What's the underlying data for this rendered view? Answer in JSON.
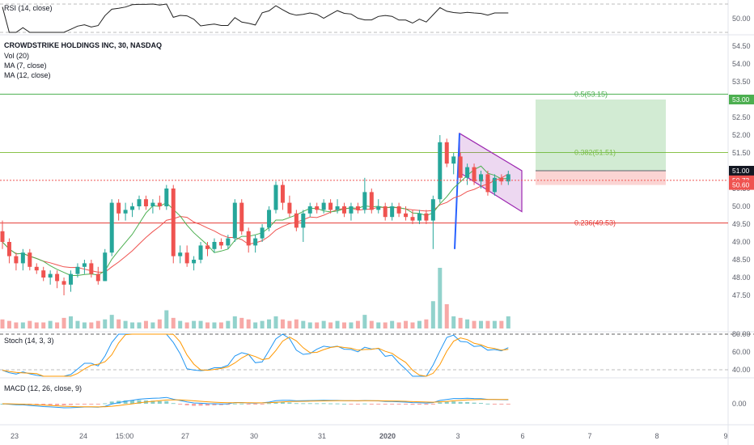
{
  "colors": {
    "up": "#26a69a",
    "down": "#ef5350",
    "rsi": "#212121",
    "ma7": "#4caf50",
    "ma12": "#ef5350",
    "stochK": "#2196f3",
    "stochD": "#ff9800",
    "macd": "#2196f3",
    "signal": "#ff9800",
    "fib05": "#4caf50",
    "fib0382": "#8bc34a",
    "fib0236": "#e53935",
    "flag": "#9c27b0",
    "pole": "#2962ff",
    "target": "#4caf50",
    "stop": "#ef5350"
  },
  "panes": {
    "rsi": {
      "label": "RSI (14, close)",
      "ticks": [
        "50.00"
      ]
    },
    "main": {
      "title": "CROWDSTRIKE HOLDINGS INC, 30, NASDAQ",
      "indicators": [
        "Vol (20)",
        "MA (7, close)",
        "MA (12, close)"
      ]
    },
    "stoch": {
      "label": "Stoch (14, 3, 3)",
      "ticks": [
        "80.00",
        "60.00",
        "40.00"
      ]
    },
    "macd": {
      "label": "MACD (12, 26, close, 9)",
      "ticks": [
        "0.00"
      ]
    }
  },
  "price_axis": {
    "ticks": [
      "54.50",
      "54.00",
      "53.50",
      "53.00",
      "52.50",
      "52.00",
      "51.50",
      "51.00",
      "50.50",
      "50.00",
      "49.50",
      "49.00",
      "48.50",
      "48.00",
      "47.50"
    ],
    "tags": [
      {
        "value": 53.0,
        "text": "53.00",
        "color": "#4caf50"
      },
      {
        "value": 51.0,
        "text": "51.00",
        "color": "#131722"
      },
      {
        "value": 50.73,
        "text": "50.73",
        "color": "#ef5350"
      },
      {
        "value": 50.6,
        "text": "50.60",
        "color": "#ef5350"
      }
    ]
  },
  "time_axis": [
    "23",
    "24",
    "15:00",
    "27",
    "30",
    "31",
    "2020",
    "3",
    "6",
    "7",
    "8",
    "9"
  ],
  "chart_data": {
    "type": "candlestick",
    "title": "CROWDSTRIKE HOLDINGS INC, 30, NASDAQ",
    "ylim": [
      47.5,
      54.75
    ],
    "candles": [
      [
        49.3,
        49.6,
        48.8,
        49.0
      ],
      [
        49.0,
        49.1,
        48.4,
        48.6
      ],
      [
        48.6,
        48.7,
        48.2,
        48.4
      ],
      [
        48.4,
        48.8,
        48.2,
        48.7
      ],
      [
        48.7,
        48.8,
        48.2,
        48.3
      ],
      [
        48.3,
        48.4,
        48.1,
        48.2
      ],
      [
        48.2,
        48.3,
        47.9,
        48.0
      ],
      [
        48.0,
        48.2,
        47.8,
        48.1
      ],
      [
        48.1,
        48.2,
        47.7,
        47.9
      ],
      [
        47.9,
        48.0,
        47.5,
        47.8
      ],
      [
        47.8,
        48.2,
        47.6,
        48.1
      ],
      [
        48.1,
        48.4,
        48.0,
        48.3
      ],
      [
        48.3,
        48.5,
        48.1,
        48.4
      ],
      [
        48.4,
        48.5,
        48.0,
        48.1
      ],
      [
        48.1,
        48.3,
        47.8,
        47.9
      ],
      [
        47.9,
        48.8,
        47.9,
        48.7
      ],
      [
        48.7,
        50.2,
        48.6,
        50.1
      ],
      [
        50.1,
        50.2,
        49.6,
        49.8
      ],
      [
        49.8,
        50.1,
        49.6,
        49.9
      ],
      [
        49.9,
        50.1,
        49.7,
        50.0
      ],
      [
        50.0,
        50.3,
        49.9,
        50.2
      ],
      [
        50.2,
        50.3,
        49.9,
        50.0
      ],
      [
        50.0,
        50.2,
        49.8,
        50.1
      ],
      [
        50.1,
        50.3,
        49.9,
        50.0
      ],
      [
        50.0,
        50.6,
        49.9,
        50.5
      ],
      [
        50.5,
        50.6,
        48.4,
        48.6
      ],
      [
        48.6,
        48.9,
        48.4,
        48.7
      ],
      [
        48.7,
        48.9,
        48.3,
        48.4
      ],
      [
        48.4,
        48.6,
        48.2,
        48.5
      ],
      [
        48.5,
        49.0,
        48.4,
        48.9
      ],
      [
        48.9,
        49.0,
        48.6,
        48.8
      ],
      [
        48.8,
        49.1,
        48.7,
        49.0
      ],
      [
        49.0,
        49.1,
        48.8,
        48.9
      ],
      [
        48.9,
        49.2,
        48.8,
        49.1
      ],
      [
        49.1,
        50.2,
        49.0,
        50.1
      ],
      [
        50.1,
        50.2,
        49.2,
        49.3
      ],
      [
        49.3,
        49.4,
        48.7,
        48.9
      ],
      [
        48.9,
        49.2,
        48.7,
        49.1
      ],
      [
        49.1,
        49.5,
        49.0,
        49.4
      ],
      [
        49.4,
        50.0,
        49.3,
        49.9
      ],
      [
        49.9,
        50.7,
        49.8,
        50.6
      ],
      [
        50.6,
        50.7,
        49.9,
        50.1
      ],
      [
        50.1,
        50.3,
        49.7,
        49.8
      ],
      [
        49.8,
        49.9,
        49.3,
        49.4
      ],
      [
        49.4,
        49.9,
        49.0,
        49.8
      ],
      [
        49.8,
        50.1,
        49.7,
        50.0
      ],
      [
        50.0,
        50.1,
        49.8,
        49.9
      ],
      [
        49.9,
        50.2,
        49.8,
        50.1
      ],
      [
        50.1,
        50.2,
        49.8,
        49.9
      ],
      [
        49.9,
        50.2,
        49.8,
        50.0
      ],
      [
        50.0,
        50.1,
        49.7,
        49.8
      ],
      [
        49.8,
        50.1,
        49.6,
        50.0
      ],
      [
        50.0,
        50.1,
        49.8,
        49.9
      ],
      [
        49.9,
        50.8,
        49.8,
        50.4
      ],
      [
        50.4,
        50.5,
        49.8,
        49.9
      ],
      [
        49.9,
        50.2,
        49.8,
        50.0
      ],
      [
        50.0,
        50.1,
        49.6,
        49.7
      ],
      [
        49.7,
        50.1,
        49.6,
        50.0
      ],
      [
        50.0,
        50.1,
        49.7,
        49.8
      ],
      [
        49.8,
        50.0,
        49.6,
        49.7
      ],
      [
        49.7,
        49.9,
        49.5,
        49.6
      ],
      [
        49.6,
        49.9,
        49.5,
        49.8
      ],
      [
        49.8,
        49.9,
        49.5,
        49.6
      ],
      [
        49.6,
        50.3,
        48.8,
        50.2
      ],
      [
        50.2,
        52.0,
        50.1,
        51.8
      ],
      [
        51.8,
        51.9,
        51.1,
        51.2
      ],
      [
        51.2,
        51.5,
        50.9,
        51.4
      ],
      [
        51.4,
        51.5,
        50.7,
        50.8
      ],
      [
        50.8,
        51.2,
        50.6,
        51.1
      ],
      [
        51.1,
        51.2,
        50.6,
        50.7
      ],
      [
        50.7,
        51.0,
        50.5,
        50.9
      ],
      [
        50.9,
        51.0,
        50.3,
        50.4
      ],
      [
        50.4,
        50.9,
        50.3,
        50.8
      ],
      [
        50.8,
        50.9,
        50.6,
        50.7
      ],
      [
        50.7,
        51.0,
        50.6,
        50.9
      ]
    ],
    "volume": [
      6,
      5,
      4,
      4,
      5,
      4,
      4,
      5,
      4,
      7,
      8,
      5,
      4,
      4,
      5,
      6,
      9,
      6,
      5,
      4,
      4,
      5,
      4,
      6,
      12,
      7,
      5,
      4,
      5,
      5,
      4,
      4,
      4,
      5,
      8,
      7,
      6,
      4,
      5,
      6,
      8,
      6,
      5,
      6,
      5,
      4,
      4,
      5,
      4,
      5,
      4,
      4,
      5,
      9,
      5,
      4,
      4,
      5,
      4,
      5,
      4,
      5,
      6,
      18,
      40,
      16,
      8,
      7,
      6,
      5,
      5,
      5,
      5,
      5,
      8
    ],
    "fib_levels": [
      {
        "label": "0.5(53.15)",
        "value": 53.15
      },
      {
        "label": "0.382(51.51)",
        "value": 51.51
      },
      {
        "label": "0.236(49.53)",
        "value": 49.53
      }
    ],
    "trade": {
      "entry": 51.0,
      "target": 53.0,
      "stop": 50.6
    }
  }
}
